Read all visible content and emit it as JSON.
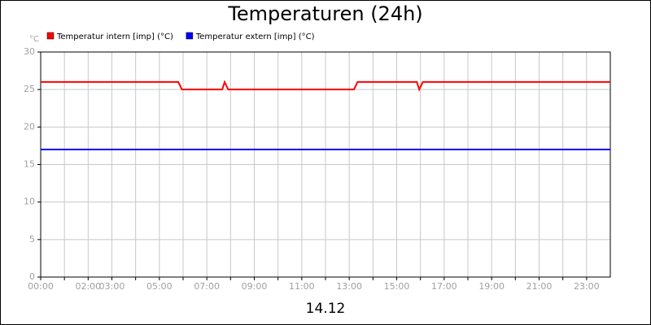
{
  "chart_data": {
    "type": "line",
    "title": "Temperaturen (24h)",
    "y_unit": "°C",
    "x_caption": "14.12",
    "xlim": [
      0,
      24
    ],
    "ylim": [
      0,
      30
    ],
    "yticks": [
      0,
      5,
      10,
      15,
      20,
      25,
      30
    ],
    "xticks": [
      {
        "value": 0,
        "label": "00:00"
      },
      {
        "value": 1,
        "label": null
      },
      {
        "value": 2,
        "label": "02:00"
      },
      {
        "value": 3,
        "label": "03:00"
      },
      {
        "value": 4,
        "label": null
      },
      {
        "value": 5,
        "label": "05:00"
      },
      {
        "value": 6,
        "label": null
      },
      {
        "value": 7,
        "label": "07:00"
      },
      {
        "value": 8,
        "label": null
      },
      {
        "value": 9,
        "label": "09:00"
      },
      {
        "value": 10,
        "label": null
      },
      {
        "value": 11,
        "label": "11:00"
      },
      {
        "value": 12,
        "label": null
      },
      {
        "value": 13,
        "label": "13:00"
      },
      {
        "value": 14,
        "label": null
      },
      {
        "value": 15,
        "label": "15:00"
      },
      {
        "value": 16,
        "label": null
      },
      {
        "value": 17,
        "label": "17:00"
      },
      {
        "value": 18,
        "label": null
      },
      {
        "value": 19,
        "label": "19:00"
      },
      {
        "value": 20,
        "label": null
      },
      {
        "value": 21,
        "label": "21:00"
      },
      {
        "value": 22,
        "label": null
      },
      {
        "value": 23,
        "label": "23:00"
      }
    ],
    "grid": true,
    "series": [
      {
        "name": "Temperatur intern [imp] (°C)",
        "color": "#ff0000",
        "x": [
          0,
          5.8,
          5.95,
          7.65,
          7.75,
          7.9,
          13.2,
          13.35,
          15.85,
          15.95,
          16.1,
          24
        ],
        "values": [
          26,
          26,
          25,
          25,
          26,
          25,
          25,
          26,
          26,
          25,
          26,
          26
        ]
      },
      {
        "name": "Temperatur extern [imp] (°C)",
        "color": "#0000ff",
        "x": [
          0,
          24
        ],
        "values": [
          17,
          17
        ]
      }
    ]
  }
}
